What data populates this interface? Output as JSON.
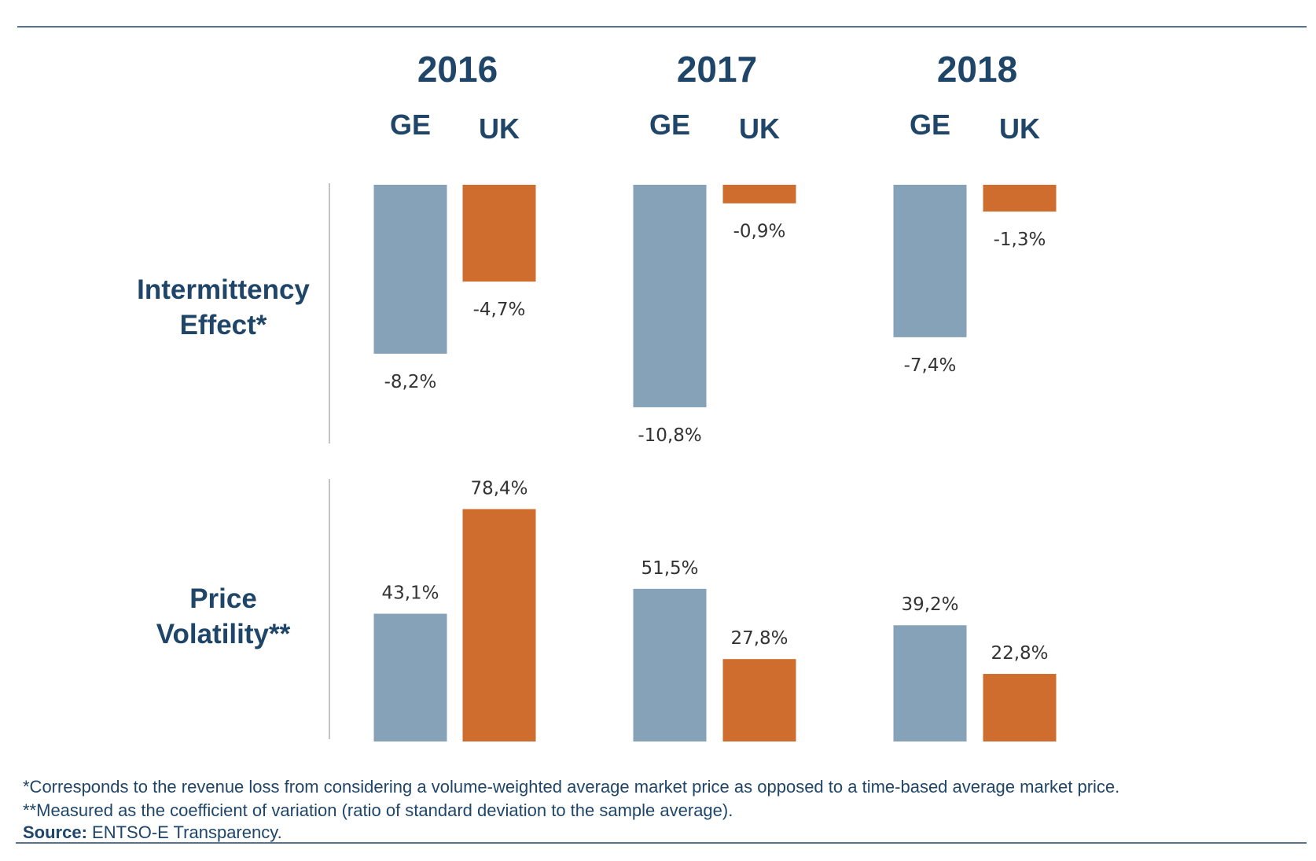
{
  "chart_data": {
    "type": "bar",
    "years": [
      "2016",
      "2017",
      "2018"
    ],
    "countries": [
      "GE",
      "UK"
    ],
    "colors": {
      "GE": "#86a2b8",
      "UK": "#cf6d2e",
      "text": "#1f4569"
    },
    "panels": [
      {
        "label_lines": [
          "Intermittency",
          "Effect*"
        ],
        "values": {
          "GE": [
            -8.2,
            -10.8,
            -7.4
          ],
          "UK": [
            -4.7,
            -0.9,
            -1.3
          ]
        },
        "value_labels": {
          "GE": [
            "-8,2%",
            "-10,8%",
            "-7,4%"
          ],
          "UK": [
            "-4,7%",
            "-0,9%",
            "-1,3%"
          ]
        },
        "unit": "%"
      },
      {
        "label_lines": [
          "Price",
          "Volatility**"
        ],
        "values": {
          "GE": [
            43.1,
            51.5,
            39.2
          ],
          "UK": [
            78.4,
            27.8,
            22.8
          ]
        },
        "value_labels": {
          "GE": [
            "43,1%",
            "51,5%",
            "39,2%"
          ],
          "UK": [
            "78,4%",
            "27,8%",
            "22,8%"
          ]
        },
        "unit": "%"
      }
    ]
  },
  "footnotes": {
    "note1": "*Corresponds to the revenue loss from considering a volume-weighted average market price as opposed to a time-based average market price.",
    "note2": "**Measured as the coefficient of variation (ratio of standard deviation to the sample average).",
    "source_label": "Source:",
    "source_text": " ENTSO-E Transparency."
  }
}
